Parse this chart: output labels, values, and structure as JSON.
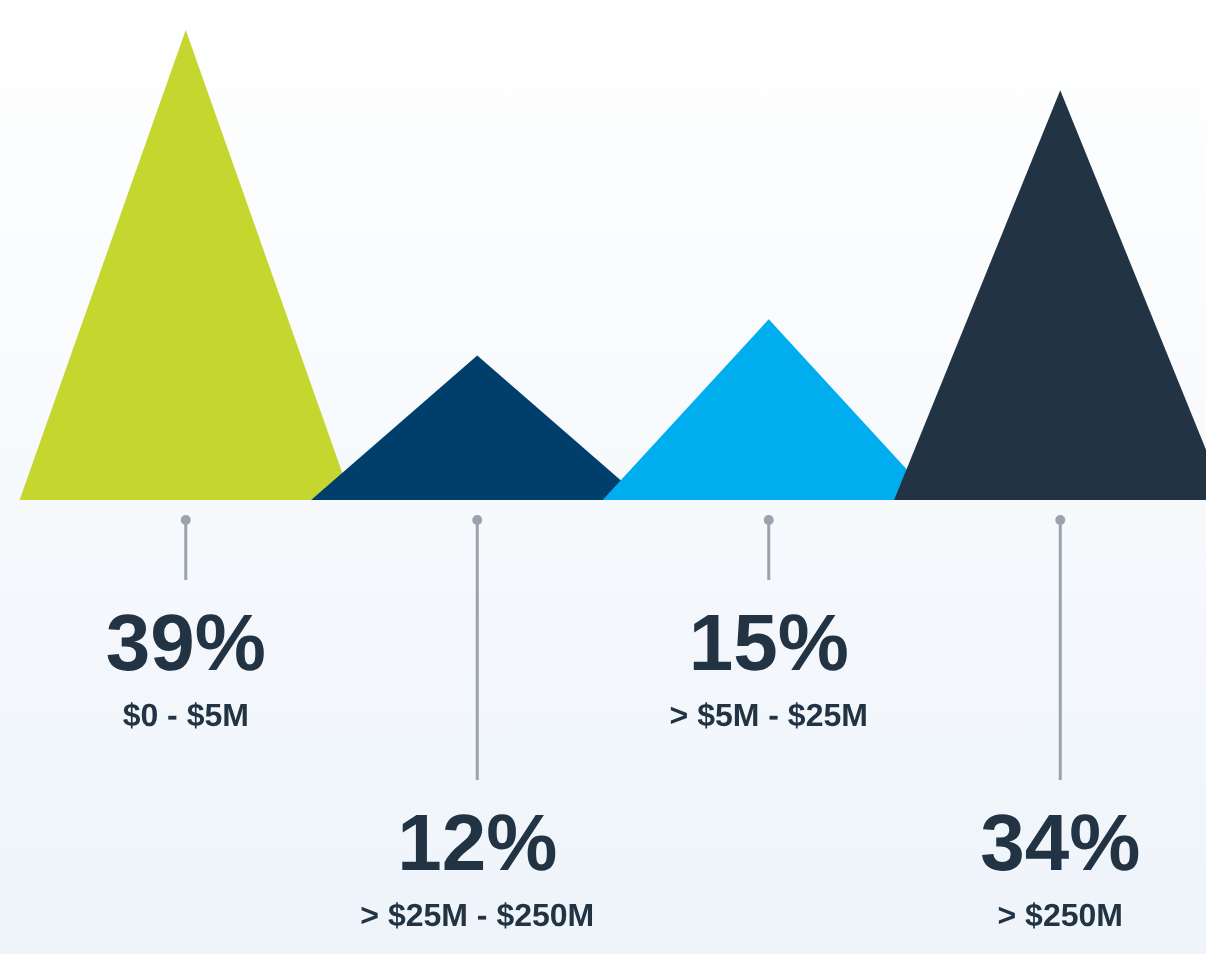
{
  "chart_data": {
    "type": "other",
    "categories": [
      "$0 - $5M",
      "> $25M - $250M",
      "> $5M - $25M",
      "> $250M"
    ],
    "values": [
      39,
      12,
      15,
      34
    ],
    "colors": [
      "#c5d62e",
      "#003f6b",
      "#00adee",
      "#223344"
    ],
    "value_labels": [
      "39%",
      "12%",
      "15%",
      "34%"
    ]
  }
}
